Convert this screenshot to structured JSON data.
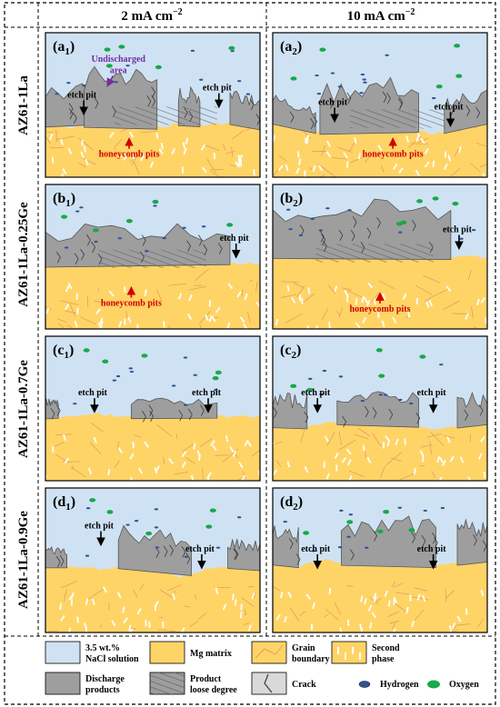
{
  "columns": [
    {
      "label": "2 mA cm",
      "sup": "−2"
    },
    {
      "label": "10 mA cm",
      "sup": "−2"
    }
  ],
  "rows": [
    "AZ61-1La",
    "AZ61-1La-0.25Ge",
    "AZ61-1La-0.7Ge",
    "AZ61-1La-0.9Ge"
  ],
  "panels": [
    {
      "letter": "a",
      "sub": "1",
      "texts": [
        "etch pit",
        "etch pit",
        "honeycomb pits",
        "Undischarged",
        "area"
      ]
    },
    {
      "letter": "a",
      "sub": "2",
      "texts": [
        "etch pit",
        "etch pit",
        "honeycomb pits"
      ]
    },
    {
      "letter": "b",
      "sub": "1",
      "texts": [
        "etch pit",
        "honeycomb pits"
      ]
    },
    {
      "letter": "b",
      "sub": "2",
      "texts": [
        "etch pit",
        "honeycomb pits"
      ]
    },
    {
      "letter": "c",
      "sub": "1",
      "texts": [
        "etch pit",
        "etch pit"
      ]
    },
    {
      "letter": "c",
      "sub": "2",
      "texts": [
        "etch pit",
        "etch pit"
      ]
    },
    {
      "letter": "d",
      "sub": "1",
      "texts": [
        "etch pit",
        "etch pit"
      ]
    },
    {
      "letter": "d",
      "sub": "2",
      "texts": [
        "etch pit",
        "etch pit"
      ]
    }
  ],
  "legend": [
    {
      "swatch": "solution",
      "lines": [
        "3.5 wt.%",
        "NaCl solution"
      ]
    },
    {
      "swatch": "matrix",
      "lines": [
        "Mg matrix"
      ]
    },
    {
      "swatch": "grain",
      "lines": [
        "Grain",
        "boundary"
      ]
    },
    {
      "swatch": "second",
      "lines": [
        "Second",
        "phase"
      ]
    },
    {
      "swatch": "discharge",
      "lines": [
        "Discharge",
        "products"
      ]
    },
    {
      "swatch": "loose",
      "lines": [
        "Product",
        "loose degree"
      ]
    },
    {
      "swatch": "crack",
      "lines": [
        "Crack"
      ]
    },
    {
      "swatch": "hydrogen",
      "lines": [
        "Hydrogen"
      ]
    },
    {
      "swatch": "oxygen",
      "lines": [
        "Oxygen"
      ]
    }
  ],
  "colors": {
    "solution": "#cfe2f3",
    "matrix": "#ffd467",
    "grain_line": "#e0a060",
    "products": "#9e9e9e",
    "hatch": "#5a5a5a",
    "crack": "#3a3a3a",
    "hydrogen": "#2f5597",
    "oxygen": "#19a84a",
    "arrow_label": "#d00000",
    "undischarged": "#7030a0"
  }
}
